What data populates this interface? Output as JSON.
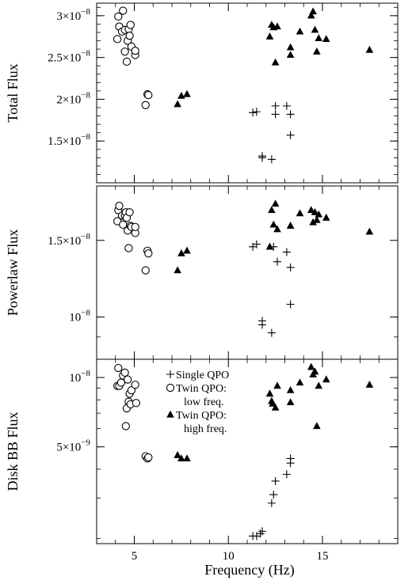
{
  "chart_data": {
    "type": "scatter",
    "xlabel": "Frequency  (Hz)",
    "x_ticks": [
      {
        "value": 5,
        "label": "5"
      },
      {
        "value": 10,
        "label": "10"
      },
      {
        "value": 15,
        "label": "15"
      }
    ],
    "xlim": [
      3,
      19
    ],
    "legend": {
      "position": "inside-top-left of bottom panel",
      "entries": [
        {
          "marker": "plus",
          "lines": [
            "Single QPO"
          ]
        },
        {
          "marker": "circle",
          "lines": [
            "Twin QPO:",
            "low freq."
          ]
        },
        {
          "marker": "triangle",
          "lines": [
            "Twin QPO:",
            "high freq."
          ]
        }
      ]
    },
    "panels": [
      {
        "ylabel": "Total Flux",
        "scale": "linear",
        "ylim": [
          1e-08,
          3.15e-08
        ],
        "y_ticks": [
          {
            "value": 1.5e-08,
            "mantissa": "1.5×10",
            "exp": "−8"
          },
          {
            "value": 2e-08,
            "mantissa": "2×10",
            "exp": "−8"
          },
          {
            "value": 2.5e-08,
            "mantissa": "2.5×10",
            "exp": "−8"
          },
          {
            "value": 3e-08,
            "mantissa": "3×10",
            "exp": "−8"
          }
        ],
        "series": [
          {
            "marker": "plus",
            "points": [
              [
                11.3,
                1.84e-08
              ],
              [
                11.5,
                1.85e-08
              ],
              [
                11.8,
                1.3e-08
              ],
              [
                11.8,
                1.32e-08
              ],
              [
                12.3,
                1.28e-08
              ],
              [
                12.5,
                1.92e-08
              ],
              [
                12.5,
                1.82e-08
              ],
              [
                13.1,
                1.92e-08
              ],
              [
                13.3,
                1.82e-08
              ],
              [
                13.3,
                1.57e-08
              ]
            ]
          },
          {
            "marker": "circle",
            "points": [
              [
                4.1,
                2.72e-08
              ],
              [
                4.15,
                2.99e-08
              ],
              [
                4.2,
                2.87e-08
              ],
              [
                4.35,
                2.81e-08
              ],
              [
                4.4,
                3.06e-08
              ],
              [
                4.5,
                2.83e-08
              ],
              [
                4.5,
                2.57e-08
              ],
              [
                4.6,
                2.45e-08
              ],
              [
                4.65,
                2.7e-08
              ],
              [
                4.7,
                2.84e-08
              ],
              [
                4.75,
                2.76e-08
              ],
              [
                4.8,
                2.89e-08
              ],
              [
                4.85,
                2.63e-08
              ],
              [
                5.05,
                2.53e-08
              ],
              [
                5.05,
                2.58e-08
              ],
              [
                5.6,
                1.93e-08
              ],
              [
                5.7,
                2.06e-08
              ],
              [
                5.75,
                2.05e-08
              ]
            ]
          },
          {
            "marker": "triangle",
            "points": [
              [
                7.3,
                1.94e-08
              ],
              [
                7.5,
                2.04e-08
              ],
              [
                7.8,
                2.06e-08
              ],
              [
                12.2,
                2.75e-08
              ],
              [
                12.3,
                2.89e-08
              ],
              [
                12.4,
                2.86e-08
              ],
              [
                12.5,
                2.44e-08
              ],
              [
                12.6,
                2.87e-08
              ],
              [
                13.3,
                2.53e-08
              ],
              [
                13.3,
                2.62e-08
              ],
              [
                13.8,
                2.81e-08
              ],
              [
                14.4,
                3e-08
              ],
              [
                14.5,
                3.05e-08
              ],
              [
                14.6,
                2.83e-08
              ],
              [
                14.7,
                2.57e-08
              ],
              [
                14.8,
                2.73e-08
              ],
              [
                15.2,
                2.72e-08
              ],
              [
                17.5,
                2.59e-08
              ]
            ]
          }
        ]
      },
      {
        "ylabel": "Powerlaw Flux",
        "scale": "log",
        "ylim": [
          8e-09,
          2e-08
        ],
        "y_ticks": [
          {
            "value": 1e-08,
            "mantissa": "10",
            "exp": "−8"
          },
          {
            "value": 1.5e-08,
            "mantissa": "1.5×10",
            "exp": "−8"
          }
        ],
        "series": [
          {
            "marker": "plus",
            "points": [
              [
                11.3,
                1.45e-08
              ],
              [
                11.5,
                1.47e-08
              ],
              [
                11.8,
                9.8e-09
              ],
              [
                11.8,
                9.6e-09
              ],
              [
                12.3,
                9.2e-09
              ],
              [
                12.4,
                1.45e-08
              ],
              [
                12.6,
                1.34e-08
              ],
              [
                13.1,
                1.41e-08
              ],
              [
                13.3,
                1.3e-08
              ],
              [
                13.3,
                1.07e-08
              ]
            ]
          },
          {
            "marker": "circle",
            "points": [
              [
                4.1,
                1.66e-08
              ],
              [
                4.15,
                1.76e-08
              ],
              [
                4.2,
                1.8e-08
              ],
              [
                4.35,
                1.71e-08
              ],
              [
                4.4,
                1.63e-08
              ],
              [
                4.5,
                1.71e-08
              ],
              [
                4.55,
                1.74e-08
              ],
              [
                4.6,
                1.69e-08
              ],
              [
                4.65,
                1.58e-08
              ],
              [
                4.7,
                1.44e-08
              ],
              [
                4.75,
                1.74e-08
              ],
              [
                4.8,
                1.62e-08
              ],
              [
                4.85,
                1.61e-08
              ],
              [
                5.05,
                1.56e-08
              ],
              [
                5.05,
                1.61e-08
              ],
              [
                5.6,
                1.28e-08
              ],
              [
                5.7,
                1.42e-08
              ],
              [
                5.75,
                1.4e-08
              ]
            ]
          },
          {
            "marker": "triangle",
            "points": [
              [
                7.3,
                1.28e-08
              ],
              [
                7.5,
                1.4e-08
              ],
              [
                7.8,
                1.42e-08
              ],
              [
                12.2,
                1.45e-08
              ],
              [
                12.3,
                1.76e-08
              ],
              [
                12.4,
                1.63e-08
              ],
              [
                12.5,
                1.82e-08
              ],
              [
                12.6,
                1.59e-08
              ],
              [
                13.3,
                1.62e-08
              ],
              [
                13.3,
                1.62e-08
              ],
              [
                13.8,
                1.73e-08
              ],
              [
                14.4,
                1.76e-08
              ],
              [
                14.5,
                1.65e-08
              ],
              [
                14.6,
                1.74e-08
              ],
              [
                14.7,
                1.67e-08
              ],
              [
                14.8,
                1.72e-08
              ],
              [
                15.2,
                1.69e-08
              ],
              [
                17.5,
                1.57e-08
              ]
            ]
          }
        ]
      },
      {
        "ylabel": "Disk BB Flux",
        "scale": "log",
        "ylim": [
          1.9e-09,
          1.2e-08
        ],
        "y_ticks": [
          {
            "value": 5e-09,
            "mantissa": "5×10",
            "exp": "−9"
          },
          {
            "value": 1e-08,
            "mantissa": "10",
            "exp": "−8"
          }
        ],
        "series": [
          {
            "marker": "plus",
            "points": [
              [
                11.3,
                2.05e-09
              ],
              [
                11.5,
                2.05e-09
              ],
              [
                11.7,
                2.1e-09
              ],
              [
                11.8,
                2.15e-09
              ],
              [
                12.3,
                2.85e-09
              ],
              [
                12.4,
                3.1e-09
              ],
              [
                12.5,
                3.55e-09
              ],
              [
                13.1,
                3.8e-09
              ],
              [
                13.3,
                4.25e-09
              ],
              [
                13.3,
                4.45e-09
              ]
            ]
          },
          {
            "marker": "circle",
            "points": [
              [
                4.1,
                9.2e-09
              ],
              [
                4.15,
                1.1e-08
              ],
              [
                4.2,
                9.2e-09
              ],
              [
                4.3,
                9.5e-09
              ],
              [
                4.4,
                1.02e-08
              ],
              [
                4.5,
                1.05e-08
              ],
              [
                4.55,
                6.15e-09
              ],
              [
                4.6,
                7.35e-09
              ],
              [
                4.65,
                9.8e-09
              ],
              [
                4.7,
                7.85e-09
              ],
              [
                4.75,
                8.5e-09
              ],
              [
                4.8,
                7.65e-09
              ],
              [
                4.85,
                8.8e-09
              ],
              [
                5.05,
                9.3e-09
              ],
              [
                5.1,
                7.75e-09
              ],
              [
                5.6,
                4.55e-09
              ],
              [
                5.7,
                4.45e-09
              ],
              [
                5.75,
                4.5e-09
              ]
            ]
          },
          {
            "marker": "triangle",
            "points": [
              [
                7.3,
                4.6e-09
              ],
              [
                7.5,
                4.45e-09
              ],
              [
                7.8,
                4.45e-09
              ],
              [
                12.2,
                8.5e-09
              ],
              [
                12.3,
                7.9e-09
              ],
              [
                12.35,
                7.7e-09
              ],
              [
                12.5,
                7.4e-09
              ],
              [
                12.6,
                9.2e-09
              ],
              [
                13.3,
                8.8e-09
              ],
              [
                13.3,
                7.8e-09
              ],
              [
                13.8,
                9.5e-09
              ],
              [
                14.4,
                1.11e-08
              ],
              [
                14.5,
                1.03e-08
              ],
              [
                14.6,
                1.06e-08
              ],
              [
                14.7,
                6.15e-09
              ],
              [
                14.8,
                9.2e-09
              ],
              [
                15.2,
                9.8e-09
              ],
              [
                17.5,
                9.3e-09
              ]
            ]
          }
        ]
      }
    ]
  }
}
